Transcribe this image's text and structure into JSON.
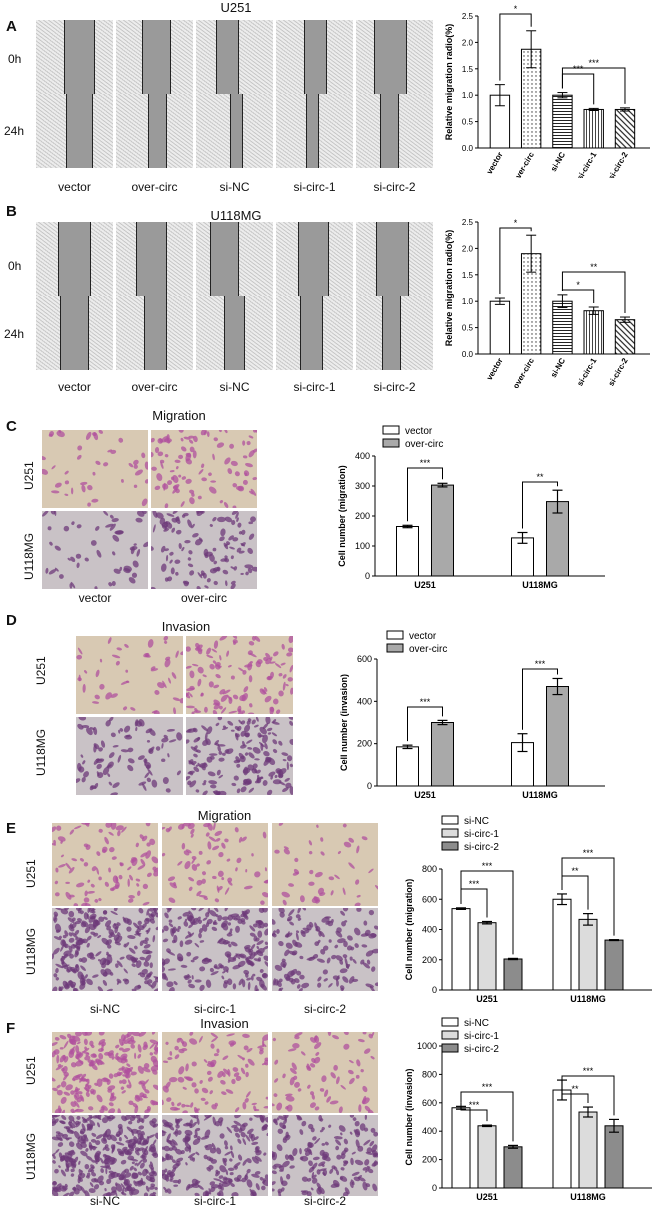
{
  "panels": {
    "A": {
      "label": "A",
      "title": "U251",
      "row_labels": [
        "0h",
        "24h"
      ],
      "col_labels": [
        "vector",
        "over-circ",
        "si-NC",
        "si-circ-1",
        "si-circ-2"
      ]
    },
    "B": {
      "label": "B",
      "title": "U118MG",
      "row_labels": [
        "0h",
        "24h"
      ],
      "col_labels": [
        "vector",
        "over-circ",
        "si-NC",
        "si-circ-1",
        "si-circ-2"
      ]
    },
    "C": {
      "label": "C",
      "title": "Migration",
      "row_labels": [
        "U251",
        "U118MG"
      ],
      "col_labels": [
        "vector",
        "over-circ"
      ]
    },
    "D": {
      "label": "D",
      "title": "Invasion",
      "row_labels": [
        "U251",
        "U118MG"
      ],
      "col_labels": []
    },
    "E": {
      "label": "E",
      "title": "Migration",
      "row_labels": [
        "U251",
        "U118MG"
      ],
      "col_labels": [
        "si-NC",
        "si-circ-1",
        "si-circ-2"
      ]
    },
    "F": {
      "label": "F",
      "title": "Invasion",
      "row_labels": [
        "U251",
        "U118MG"
      ],
      "col_labels": [
        "si-NC",
        "si-circ-1",
        "si-circ-2"
      ]
    }
  },
  "colors": {
    "gray_fill": "#a9a9a9",
    "light_fill": "#dcdcdc",
    "dark_fill": "#8c8c8c",
    "stain": "#9b3c8c",
    "transwell_bg": "#d8c9b3"
  },
  "chart_data": [
    {
      "id": "A",
      "type": "bar",
      "ylabel": "Relative migration radio(%)",
      "ylim": [
        0,
        2.5
      ],
      "yticks": [
        "0.0",
        "0.5",
        "1.0",
        "1.5",
        "2.0",
        "2.5"
      ],
      "categories": [
        "vector",
        "over-circ",
        "si-NC",
        "si-circ-1",
        "si-circ-2"
      ],
      "values": [
        1.0,
        1.87,
        1.0,
        0.73,
        0.73
      ],
      "errors": [
        0.2,
        0.35,
        0.05,
        0.02,
        0.03
      ],
      "fills": [
        "white",
        "dots",
        "hlines",
        "vlines",
        "hatch"
      ],
      "annotations": [
        {
          "from": 0,
          "to": 1,
          "text": "*"
        },
        {
          "from": 2,
          "to": 3,
          "text": "***"
        },
        {
          "from": 2,
          "to": 4,
          "text": "***"
        }
      ]
    },
    {
      "id": "B",
      "type": "bar",
      "ylabel": "Relative migration radio(%)",
      "ylim": [
        0,
        2.5
      ],
      "yticks": [
        "0.0",
        "0.5",
        "1.0",
        "1.5",
        "2.0",
        "2.5"
      ],
      "categories": [
        "vector",
        "over-circ",
        "si-NC",
        "si-circ-1",
        "si-circ-2"
      ],
      "values": [
        1.0,
        1.9,
        1.0,
        0.82,
        0.65
      ],
      "errors": [
        0.06,
        0.35,
        0.12,
        0.07,
        0.05
      ],
      "fills": [
        "white",
        "dots",
        "hlines",
        "vlines",
        "hatch"
      ],
      "annotations": [
        {
          "from": 0,
          "to": 1,
          "text": "*"
        },
        {
          "from": 2,
          "to": 3,
          "text": "*"
        },
        {
          "from": 2,
          "to": 4,
          "text": "**"
        }
      ]
    },
    {
      "id": "C",
      "type": "bar",
      "ylabel": "Cell number (migration)",
      "ylim": [
        0,
        400
      ],
      "yticks": [
        "0",
        "100",
        "200",
        "300",
        "400"
      ],
      "categories": [
        "U251",
        "U118MG"
      ],
      "series": [
        {
          "name": "vector",
          "values": [
            165,
            127
          ],
          "errors": [
            4,
            18
          ],
          "fill": "white"
        },
        {
          "name": "over-circ",
          "values": [
            303,
            248
          ],
          "errors": [
            6,
            38
          ],
          "fill": "gray"
        }
      ],
      "annotations": [
        {
          "group": 0,
          "text": "***"
        },
        {
          "group": 1,
          "text": "**"
        }
      ]
    },
    {
      "id": "D",
      "type": "bar",
      "ylabel": "Cell number (invasion)",
      "ylim": [
        0,
        600
      ],
      "yticks": [
        "0",
        "200",
        "400",
        "600"
      ],
      "categories": [
        "U251",
        "U118MG"
      ],
      "series": [
        {
          "name": "vector",
          "values": [
            185,
            205
          ],
          "errors": [
            8,
            42
          ],
          "fill": "white"
        },
        {
          "name": "over-circ",
          "values": [
            300,
            470
          ],
          "errors": [
            10,
            38
          ],
          "fill": "gray"
        }
      ],
      "annotations": [
        {
          "group": 0,
          "text": "***"
        },
        {
          "group": 1,
          "text": "***"
        }
      ]
    },
    {
      "id": "E",
      "type": "bar",
      "ylabel": "Cell number (migration)",
      "ylim": [
        0,
        800
      ],
      "yticks": [
        "0",
        "200",
        "400",
        "600",
        "800"
      ],
      "categories": [
        "U251",
        "U118MG"
      ],
      "series": [
        {
          "name": "si-NC",
          "values": [
            538,
            600
          ],
          "errors": [
            5,
            35
          ],
          "fill": "white"
        },
        {
          "name": "si-circ-1",
          "values": [
            445,
            467
          ],
          "errors": [
            8,
            38
          ],
          "fill": "light"
        },
        {
          "name": "si-circ-2",
          "values": [
            205,
            330
          ],
          "errors": [
            4,
            3
          ],
          "fill": "dark"
        }
      ],
      "annotations": [
        {
          "group": 0,
          "from": 0,
          "to": 1,
          "text": "***"
        },
        {
          "group": 0,
          "from": 0,
          "to": 2,
          "text": "***"
        },
        {
          "group": 1,
          "from": 0,
          "to": 1,
          "text": "**"
        },
        {
          "group": 1,
          "from": 0,
          "to": 2,
          "text": "***"
        }
      ]
    },
    {
      "id": "F",
      "type": "bar",
      "ylabel": "Cell number (invasion)",
      "ylim": [
        0,
        1000
      ],
      "yticks": [
        "0",
        "200",
        "400",
        "600",
        "800",
        "1000"
      ],
      "categories": [
        "U251",
        "U118MG"
      ],
      "series": [
        {
          "name": "si-NC",
          "values": [
            565,
            690
          ],
          "errors": [
            10,
            70
          ],
          "fill": "white"
        },
        {
          "name": "si-circ-1",
          "values": [
            438,
            535
          ],
          "errors": [
            5,
            35
          ],
          "fill": "light"
        },
        {
          "name": "si-circ-2",
          "values": [
            290,
            438
          ],
          "errors": [
            10,
            45
          ],
          "fill": "dark"
        }
      ],
      "annotations": [
        {
          "group": 0,
          "from": 0,
          "to": 1,
          "text": "***"
        },
        {
          "group": 0,
          "from": 0,
          "to": 2,
          "text": "***"
        },
        {
          "group": 1,
          "from": 0,
          "to": 1,
          "text": "**"
        },
        {
          "group": 1,
          "from": 0,
          "to": 2,
          "text": "***"
        }
      ]
    }
  ]
}
